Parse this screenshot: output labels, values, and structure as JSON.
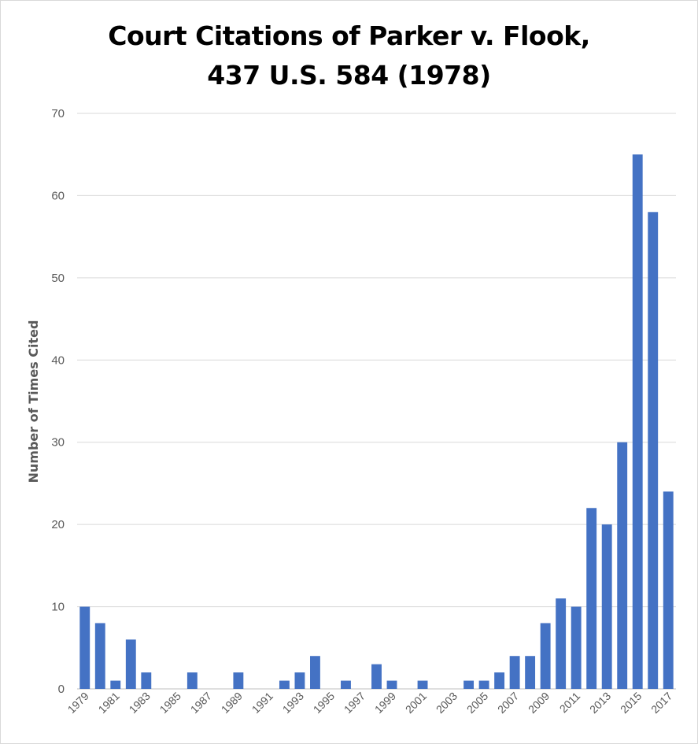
{
  "chart_data": {
    "type": "bar",
    "title_line1": "Court Citations of Parker v. Flook,",
    "title_line2": "437 U.S. 584 (1978)",
    "xlabel": "",
    "ylabel": "Number of Times Cited",
    "ylim": [
      0,
      70
    ],
    "y_ticks": [
      0,
      10,
      20,
      30,
      40,
      50,
      60,
      70
    ],
    "grid": "horizontal",
    "legend": "none",
    "bar_color": "#4472C4",
    "categories": [
      "1979",
      "1980",
      "1981",
      "1982",
      "1983",
      "1984",
      "1985",
      "1986",
      "1987",
      "1988",
      "1989",
      "1990",
      "1991",
      "1992",
      "1993",
      "1994",
      "1995",
      "1996",
      "1997",
      "1998",
      "1999",
      "2000",
      "2001",
      "2002",
      "2003",
      "2004",
      "2005",
      "2006",
      "2007",
      "2008",
      "2009",
      "2010",
      "2011",
      "2012",
      "2013",
      "2014",
      "2015",
      "2016",
      "2017"
    ],
    "tick_labels": [
      "1979",
      "1981",
      "1983",
      "1985",
      "1987",
      "1989",
      "1991",
      "1993",
      "1995",
      "1997",
      "1999",
      "2001",
      "2003",
      "2005",
      "2007",
      "2009",
      "2011",
      "2013",
      "2015",
      "2017"
    ],
    "values": [
      10,
      8,
      1,
      6,
      2,
      0,
      0,
      2,
      0,
      0,
      2,
      0,
      0,
      1,
      2,
      4,
      0,
      1,
      0,
      3,
      1,
      0,
      1,
      0,
      0,
      1,
      1,
      2,
      4,
      4,
      8,
      11,
      10,
      22,
      20,
      30,
      65,
      58,
      24
    ]
  }
}
